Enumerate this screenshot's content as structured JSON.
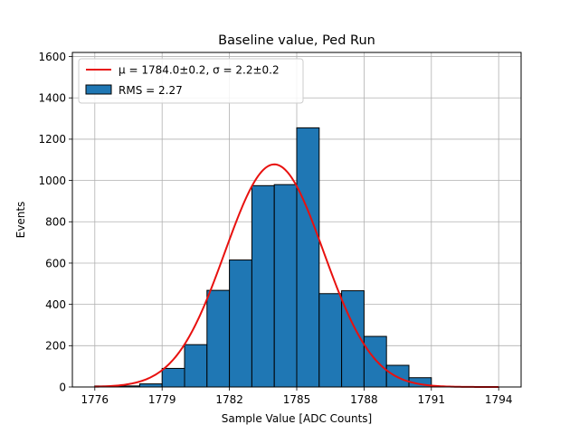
{
  "chart_data": {
    "type": "bar",
    "title": "Baseline value, Ped Run",
    "xlabel": "Sample Value [ADC Counts]",
    "ylabel": "Events",
    "xlim": [
      1775,
      1795
    ],
    "ylim": [
      0,
      1620
    ],
    "grid": true,
    "legend_position": "top-left",
    "x_ticks": [
      1776,
      1779,
      1782,
      1785,
      1788,
      1791,
      1794
    ],
    "y_ticks": [
      0,
      200,
      400,
      600,
      800,
      1000,
      1200,
      1400,
      1600
    ],
    "histogram": {
      "name": "RMS = 2.27",
      "color": "#1f77b4",
      "edge_color": "#000000",
      "bin_edges": [
        1776.0,
        1777.0,
        1778.0,
        1779.0,
        1780.0,
        1781.0,
        1782.0,
        1783.0,
        1784.0,
        1785.0,
        1786.0,
        1787.0,
        1788.0,
        1789.0,
        1790.0,
        1791.0
      ],
      "counts": [
        5,
        5,
        15,
        90,
        205,
        468,
        615,
        975,
        980,
        1255,
        452,
        466,
        245,
        105,
        45
      ]
    },
    "fit": {
      "type": "gaussian",
      "mu": 1784.0,
      "sigma": 2.2,
      "amplitude": 1078,
      "x_range": [
        1776,
        1794
      ],
      "color": "#e8110f"
    },
    "legend": {
      "fit_label": "μ = 1784.0±0.2, σ = 2.2±0.2",
      "hist_label": "RMS = 2.27"
    }
  }
}
